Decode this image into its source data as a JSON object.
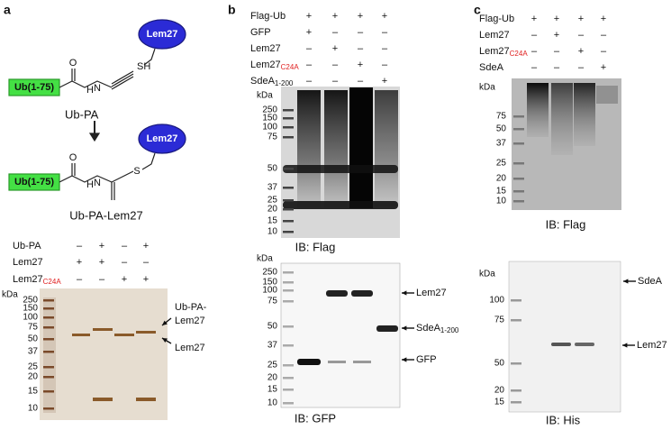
{
  "panel_a": {
    "label": "a",
    "scheme": {
      "enzyme_1": "Lem27",
      "thiol": "SH",
      "ub_1": "Ub(1-75)",
      "oxygen_1": "O",
      "nitrogen_1": "N",
      "hydrogen_1": "H",
      "product_1": "Ub-PA",
      "enzyme_2": "Lem27",
      "ub_2": "Ub(1-75)",
      "oxygen_2": "O",
      "nitrogen_2": "N",
      "hydrogen_2": "H",
      "sulfur": "S",
      "product_2": "Ub-PA-Lem27"
    },
    "conditions": [
      {
        "label": {
          "text": "Ub-PA"
        },
        "signs": [
          "–",
          "+",
          "–",
          "+"
        ]
      },
      {
        "label": {
          "text": "Lem27"
        },
        "signs": [
          "+",
          "+",
          "–",
          "–"
        ]
      },
      {
        "label": {
          "text": "Lem27",
          "sub": "C24A",
          "sub_color": "#e02020"
        },
        "signs": [
          "–",
          "–",
          "+",
          "+"
        ]
      }
    ],
    "gel": {
      "unit": "kDa",
      "markers": [
        "250",
        "150",
        "100",
        "75",
        "50",
        "37",
        "25",
        "20",
        "15",
        "10"
      ],
      "annotations": [
        "Ub-PA-",
        "Lem27",
        "Lem27"
      ]
    }
  },
  "panel_b": {
    "label": "b",
    "conditions": [
      {
        "label": {
          "text": "Flag-Ub"
        },
        "signs": [
          "+",
          "+",
          "+",
          "+"
        ]
      },
      {
        "label": {
          "text": "GFP"
        },
        "signs": [
          "+",
          "–",
          "–",
          "–"
        ]
      },
      {
        "label": {
          "text": "Lem27"
        },
        "signs": [
          "–",
          "+",
          "–",
          "–"
        ]
      },
      {
        "label": {
          "text": "Lem27",
          "sub": "C24A",
          "sub_color": "#e02020"
        },
        "signs": [
          "–",
          "–",
          "+",
          "–"
        ]
      },
      {
        "label": {
          "text": "SdeA",
          "sub": "1-200"
        },
        "signs": [
          "–",
          "–",
          "–",
          "+"
        ]
      }
    ],
    "blot_1": {
      "unit": "kDa",
      "markers": [
        "250",
        "150",
        "100",
        "75",
        "50",
        "37",
        "25",
        "20",
        "15",
        "10"
      ],
      "caption": "IB: Flag"
    },
    "blot_2": {
      "unit": "kDa",
      "markers": [
        "250",
        "150",
        "100",
        "75",
        "50",
        "37",
        "25",
        "20",
        "15",
        "10"
      ],
      "annotations": [
        {
          "text": "Lem27"
        },
        {
          "text": "SdeA",
          "sub": "1-200"
        },
        {
          "text": "GFP"
        }
      ],
      "caption": "IB: GFP"
    }
  },
  "panel_c": {
    "label": "c",
    "conditions": [
      {
        "label": {
          "text": "Flag-Ub"
        },
        "signs": [
          "+",
          "+",
          "+",
          "+"
        ]
      },
      {
        "label": {
          "text": "Lem27"
        },
        "signs": [
          "–",
          "+",
          "–",
          "–"
        ]
      },
      {
        "label": {
          "text": "Lem27",
          "sub": "C24A",
          "sub_color": "#e02020"
        },
        "signs": [
          "–",
          "–",
          "+",
          "–"
        ]
      },
      {
        "label": {
          "text": "SdeA"
        },
        "signs": [
          "–",
          "–",
          "–",
          "+"
        ]
      }
    ],
    "blot_1": {
      "unit": "kDa",
      "markers": [
        "75",
        "50",
        "37",
        "25",
        "20",
        "15",
        "10"
      ],
      "caption": "IB: Flag"
    },
    "blot_2": {
      "unit": "kDa",
      "markers": [
        "100",
        "75",
        "50",
        "20",
        "15"
      ],
      "annotations": [
        {
          "text": "SdeA"
        },
        {
          "text": "Lem27"
        }
      ],
      "caption": "IB: His"
    }
  }
}
